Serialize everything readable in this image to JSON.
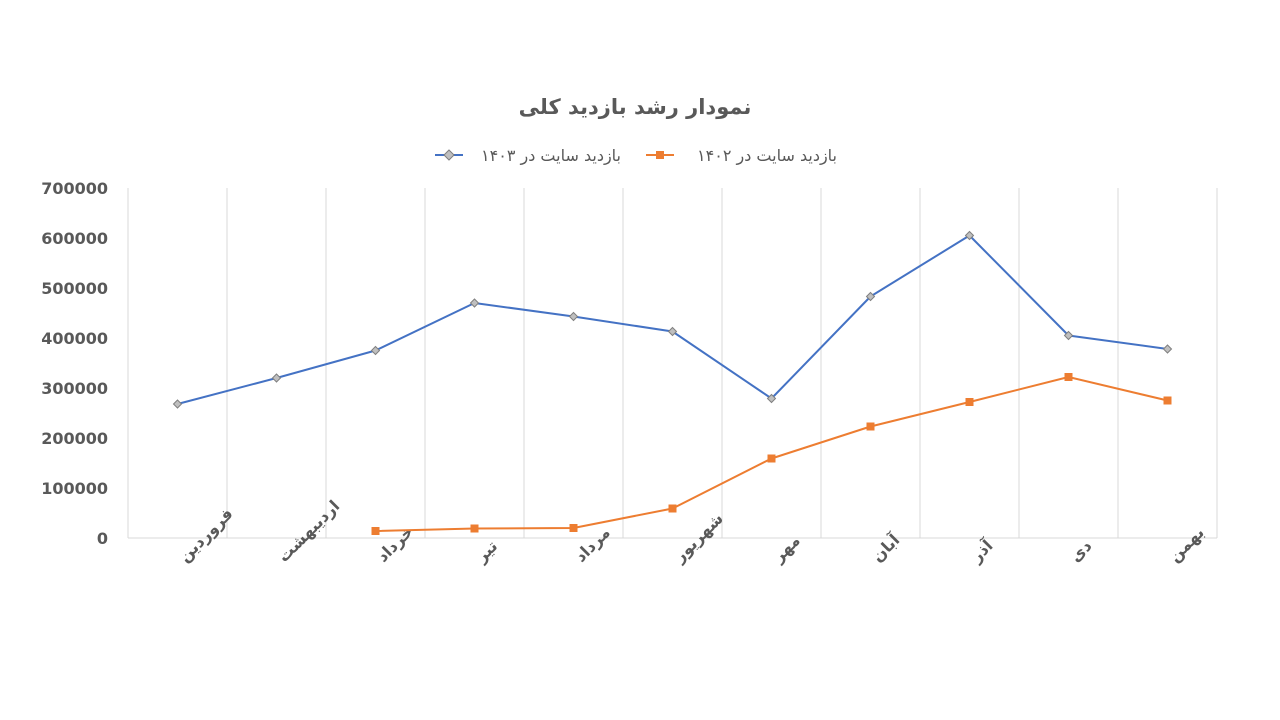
{
  "chart_data": {
    "type": "line",
    "title": "نمودار رشد بازدید کلی",
    "xlabel": "",
    "ylabel": "",
    "categories": [
      "فروردین",
      "اردیبهشت",
      "خرداد",
      "تیر",
      "مرداد",
      "شهریور",
      "مهر",
      "آبان",
      "آذر",
      "دی",
      "بهمن"
    ],
    "yticks": [
      "0",
      "100000",
      "200000",
      "300000",
      "400000",
      "500000",
      "600000",
      "700000"
    ],
    "ylim": [
      0,
      700000
    ],
    "grid": "vertical",
    "legend_position": "top",
    "series": [
      {
        "name": "بازدید سایت در ۱۴۰۳",
        "color": "#4472C4",
        "marker": "diamond",
        "values": [
          268000,
          320000,
          375000,
          470000,
          443000,
          413000,
          279000,
          483000,
          605000,
          405000,
          378000
        ]
      },
      {
        "name": "بازدید سایت  در ۱۴۰۲",
        "color": "#ED7D31",
        "marker": "square",
        "values": [
          null,
          null,
          14000,
          19000,
          20000,
          59000,
          159000,
          223000,
          272000,
          322000,
          275000
        ]
      }
    ]
  }
}
